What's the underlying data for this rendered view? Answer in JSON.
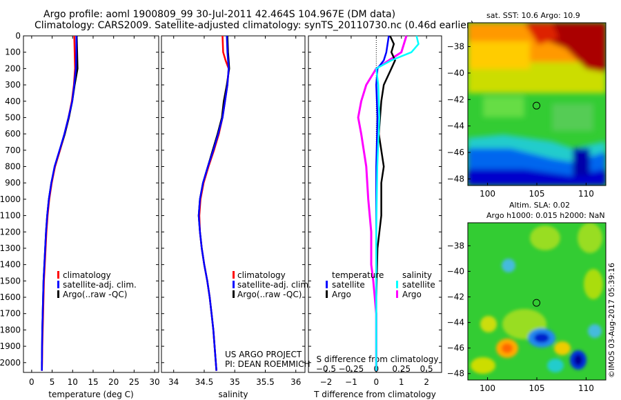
{
  "title": {
    "line1": "Argo profile: aoml 1900809_99 30-Jul-2011 42.464S 104.967E (DM data)",
    "line2": "Climatology: CARS2009. Satellite-adjusted climatology: synTS_20110730.nc (0.46d earlier)"
  },
  "colors": {
    "climatology": "#ff0000",
    "satellite": "#0000ff",
    "argo": "#000000",
    "salinity_satellite": "#00ffff",
    "salinity_argo": "#ff00ff"
  },
  "project": {
    "line1": "US ARGO PROJECT",
    "line2": "PI: DEAN ROEMMICH"
  },
  "footer_stamp": "©IMOS 03-Aug-2017 05:39:16",
  "chart_data": [
    {
      "type": "line",
      "name": "temperature-profile",
      "xlabel": "temperature (deg C)",
      "ylabel": "",
      "xlim": [
        -2,
        31
      ],
      "ylim": [
        2060,
        0
      ],
      "xticks": [
        0,
        5,
        10,
        15,
        20,
        25,
        30
      ],
      "yticks": [
        0,
        100,
        200,
        300,
        400,
        500,
        600,
        700,
        800,
        900,
        1000,
        1100,
        1200,
        1300,
        1400,
        1500,
        1600,
        1700,
        1800,
        1900,
        2000
      ],
      "legend": [
        "climatology",
        "satellite-adj. clim.",
        "Argo(..raw -QC)"
      ],
      "series": [
        {
          "name": "climatology",
          "depth": [
            0,
            100,
            200,
            300,
            400,
            500,
            600,
            700,
            800,
            900,
            1000,
            1100,
            1200,
            1300,
            1400,
            1500,
            1600,
            1700,
            1800,
            1900,
            2000,
            2050
          ],
          "values": [
            10.4,
            10.5,
            10.6,
            10.3,
            9.8,
            9.0,
            8.0,
            6.9,
            5.7,
            4.9,
            4.3,
            3.9,
            3.6,
            3.4,
            3.2,
            3.0,
            2.9,
            2.8,
            2.7,
            2.6,
            2.55,
            2.5
          ]
        },
        {
          "name": "satellite-adj. clim.",
          "depth": [
            0,
            100,
            200,
            300,
            400,
            500,
            600,
            700,
            800,
            900,
            1000,
            1100,
            1200,
            1300,
            1400,
            1500,
            1600,
            1700,
            1800,
            1900,
            2000,
            2050
          ],
          "values": [
            10.9,
            10.9,
            10.8,
            10.4,
            9.9,
            9.0,
            8.0,
            6.8,
            5.6,
            4.8,
            4.2,
            3.8,
            3.5,
            3.3,
            3.1,
            2.9,
            2.8,
            2.7,
            2.6,
            2.55,
            2.5,
            2.5
          ]
        },
        {
          "name": "Argo(..raw -QC)",
          "depth": [
            0,
            100,
            200,
            300,
            400,
            500,
            600,
            700,
            800,
            900,
            1000,
            1100,
            1200,
            1300,
            1400,
            1500,
            1600,
            1700,
            1800,
            1900,
            2000,
            2050
          ],
          "values": [
            11.0,
            11.1,
            11.2,
            10.5,
            9.9,
            9.1,
            8.1,
            6.9,
            5.7,
            4.8,
            4.2,
            3.8,
            3.5,
            3.3,
            3.1,
            2.9,
            2.8,
            2.7,
            2.6,
            2.55,
            2.5,
            2.5
          ]
        }
      ]
    },
    {
      "type": "line",
      "name": "salinity-profile",
      "xlabel": "salinity",
      "xlim": [
        33.8,
        36.15
      ],
      "ylim": [
        2060,
        0
      ],
      "xticks": [
        34,
        34.5,
        35,
        35.5,
        36
      ],
      "legend": [
        "climatology",
        "satellite-adj. clim.",
        "Argo(..raw -QC)"
      ],
      "series": [
        {
          "name": "climatology",
          "depth": [
            0,
            100,
            150,
            200,
            300,
            400,
            500,
            600,
            700,
            800,
            900,
            1000,
            1100,
            1200,
            1300,
            1400,
            1500,
            1600,
            1700,
            1800,
            1900,
            2000,
            2050
          ],
          "values": [
            34.8,
            34.81,
            34.85,
            34.9,
            34.88,
            34.84,
            34.8,
            34.74,
            34.66,
            34.57,
            34.49,
            34.44,
            34.42,
            34.43,
            34.46,
            34.5,
            34.55,
            34.59,
            34.62,
            34.65,
            34.67,
            34.69,
            34.7
          ]
        },
        {
          "name": "satellite-adj. clim.",
          "depth": [
            0,
            100,
            150,
            200,
            300,
            400,
            500,
            600,
            700,
            800,
            900,
            1000,
            1100,
            1200,
            1300,
            1400,
            1500,
            1600,
            1700,
            1800,
            1900,
            2000,
            2050
          ],
          "values": [
            34.87,
            34.88,
            34.89,
            34.9,
            34.88,
            34.84,
            34.8,
            34.73,
            34.65,
            34.56,
            34.48,
            34.43,
            34.41,
            34.43,
            34.46,
            34.5,
            34.55,
            34.59,
            34.62,
            34.65,
            34.67,
            34.69,
            34.7
          ]
        },
        {
          "name": "Argo(..raw -QC)",
          "depth": [
            0,
            100,
            150,
            200,
            300,
            400,
            500,
            600,
            700,
            800,
            900,
            1000,
            1100,
            1200,
            1300,
            1400,
            1500,
            1600,
            1700,
            1800,
            1900,
            2000,
            2050
          ],
          "values": [
            34.88,
            34.89,
            34.9,
            34.91,
            34.87,
            34.82,
            34.79,
            34.72,
            34.64,
            34.56,
            34.48,
            34.43,
            34.41,
            34.43,
            34.46,
            34.5,
            34.55,
            34.59,
            34.62,
            34.65,
            34.67,
            34.69,
            34.7
          ]
        }
      ]
    },
    {
      "type": "line",
      "name": "difference-profile",
      "xlabel": "T difference from climatology",
      "x2label": "S difference from climatology",
      "xlim": [
        -2.7,
        2.6
      ],
      "ylim": [
        2060,
        0
      ],
      "xticks": [
        -2,
        -1,
        0,
        1,
        2
      ],
      "xtick_labels": [
        "−2",
        "−1",
        "0",
        "1",
        "2"
      ],
      "x2ticks": [
        -0.5,
        -0.25,
        0,
        0.25,
        0.5
      ],
      "x2tick_labels": [
        "−0.5",
        "−0.25",
        "0",
        "0.25",
        "0.5"
      ],
      "legend": {
        "temperature_header": "temperature",
        "salinity_header": "salinity",
        "satellite": "satellite",
        "argo": "Argo"
      },
      "series": [
        {
          "name": "temperature satellite",
          "depth": [
            0,
            50,
            100,
            150,
            200,
            300,
            500,
            800,
            1200,
            1600,
            2050
          ],
          "values": [
            0.5,
            0.45,
            0.4,
            0.3,
            0.05,
            0.0,
            0.05,
            0.0,
            0.0,
            0.0,
            0.0
          ]
        },
        {
          "name": "temperature Argo",
          "depth": [
            0,
            50,
            100,
            150,
            200,
            300,
            400,
            600,
            800,
            900,
            1100,
            1300,
            1600,
            2050
          ],
          "values": [
            0.55,
            0.7,
            0.6,
            0.75,
            0.6,
            0.3,
            0.2,
            0.1,
            0.3,
            0.2,
            0.2,
            0.05,
            0.0,
            0.0
          ]
        },
        {
          "name": "salinity satellite",
          "depth": [
            0,
            50,
            100,
            150,
            200,
            300,
            500,
            800,
            1200,
            1600,
            2050
          ],
          "values": [
            0.4,
            0.42,
            0.35,
            0.15,
            0.0,
            0.02,
            0.03,
            0.01,
            0.0,
            0.0,
            0.0
          ]
        },
        {
          "name": "salinity Argo",
          "depth": [
            0,
            100,
            200,
            300,
            400,
            500,
            600,
            800,
            1000,
            1200,
            1400,
            1500,
            1700,
            2050
          ],
          "values": [
            0.3,
            0.25,
            0.0,
            -0.1,
            -0.15,
            -0.18,
            -0.15,
            -0.1,
            -0.08,
            -0.05,
            -0.05,
            -0.03,
            0.0,
            0.0
          ]
        }
      ]
    }
  ],
  "maps": [
    {
      "name": "sst-map",
      "title": "sat. SST: 10.6 Argo: 10.9",
      "xticks": [
        100,
        105,
        110
      ],
      "yticks": [
        -38,
        -40,
        -42,
        -44,
        -46,
        -48
      ],
      "xlim": [
        98,
        112
      ],
      "ylim": [
        -48.5,
        -36.2
      ],
      "marker": {
        "lon": 104.967,
        "lat": -42.464
      }
    },
    {
      "name": "sla-map",
      "title_line1": "Altim. SLA: 0.02",
      "title_line2": "Argo h1000: 0.015 h2000: NaN",
      "xticks": [
        100,
        105,
        110
      ],
      "yticks": [
        -38,
        -40,
        -42,
        -44,
        -46,
        -48
      ],
      "xlim": [
        98,
        112
      ],
      "ylim": [
        -48.5,
        -36.2
      ],
      "marker": {
        "lon": 104.967,
        "lat": -42.464
      }
    }
  ]
}
